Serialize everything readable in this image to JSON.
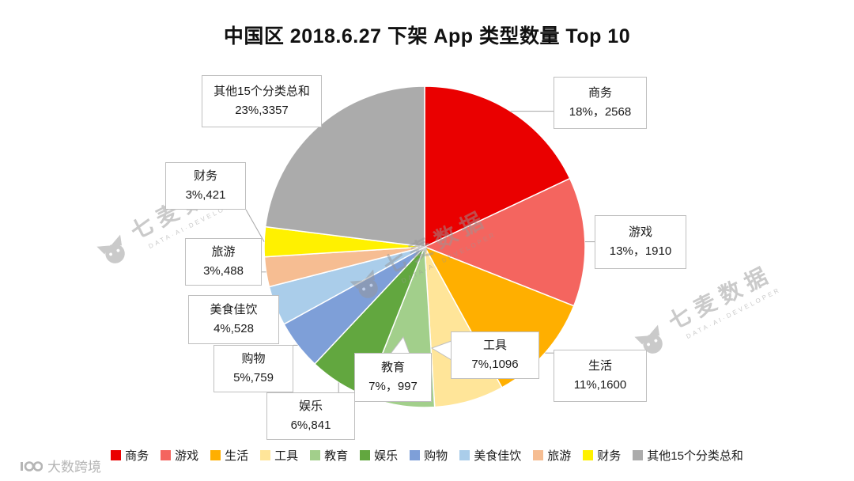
{
  "title": "中国区 2018.6.27 下架 App 类型数量 Top 10",
  "chart_data": {
    "type": "pie",
    "title": "中国区 2018.6.27 下架 App 类型数量 Top 10",
    "start_angle_deg": 0,
    "direction": "clockwise",
    "legend_position": "bottom",
    "series": [
      {
        "label": "商务",
        "percent": 18,
        "value": 2568,
        "value_text": "18%，2568",
        "color": "#EA0000"
      },
      {
        "label": "游戏",
        "percent": 13,
        "value": 1910,
        "value_text": "13%，1910",
        "color": "#F4655F"
      },
      {
        "label": "生活",
        "percent": 11,
        "value": 1600,
        "value_text": "11%,1600",
        "color": "#FFAF00"
      },
      {
        "label": "工具",
        "percent": 7,
        "value": 1096,
        "value_text": "7%,1096",
        "color": "#FFE599"
      },
      {
        "label": "教育",
        "percent": 7,
        "value": 997,
        "value_text": "7%，997",
        "color": "#A2CF8B"
      },
      {
        "label": "娱乐",
        "percent": 6,
        "value": 841,
        "value_text": "6%,841",
        "color": "#62A73F"
      },
      {
        "label": "购物",
        "percent": 5,
        "value": 759,
        "value_text": "5%,759",
        "color": "#7E9FD8"
      },
      {
        "label": "美食佳饮",
        "percent": 4,
        "value": 528,
        "value_text": "4%,528",
        "color": "#AACDEA"
      },
      {
        "label": "旅游",
        "percent": 3,
        "value": 488,
        "value_text": "3%,488",
        "color": "#F6BD92"
      },
      {
        "label": "财务",
        "percent": 3,
        "value": 421,
        "value_text": "3%,421",
        "color": "#FFF100"
      },
      {
        "label": "其他15个分类总和",
        "percent": 23,
        "value": 3357,
        "value_text": "23%,3357",
        "color": "#ABABAB"
      }
    ]
  },
  "watermark": {
    "text": "七麦数据",
    "tagline": "DATA·AI·DEVELOPER"
  },
  "footer": {
    "logo_text": "大数跨境"
  }
}
